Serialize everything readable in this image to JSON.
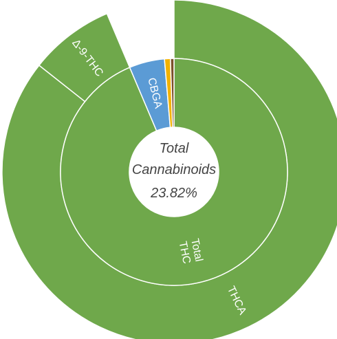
{
  "chart_data": {
    "type": "sunburst",
    "center": {
      "line1": "Total",
      "line2": "Cannabinoids",
      "value": "23.82%"
    },
    "inner_ring": [
      {
        "label": "Total THC",
        "value": 22.3,
        "color": "#6FA84B"
      },
      {
        "label": "CBGA",
        "value": 1.2,
        "color": "#5B9BD5"
      },
      {
        "label": "",
        "value": 0.2,
        "color": "#F3B200"
      },
      {
        "label": "",
        "value": 0.12,
        "color": "#7B4F2A"
      }
    ],
    "outer_ring": [
      {
        "label": "THCA",
        "value": 20.4,
        "color": "#6FA84B"
      },
      {
        "label": "Δ-9-THC",
        "value": 1.9,
        "color": "#6FA84B"
      }
    ]
  }
}
